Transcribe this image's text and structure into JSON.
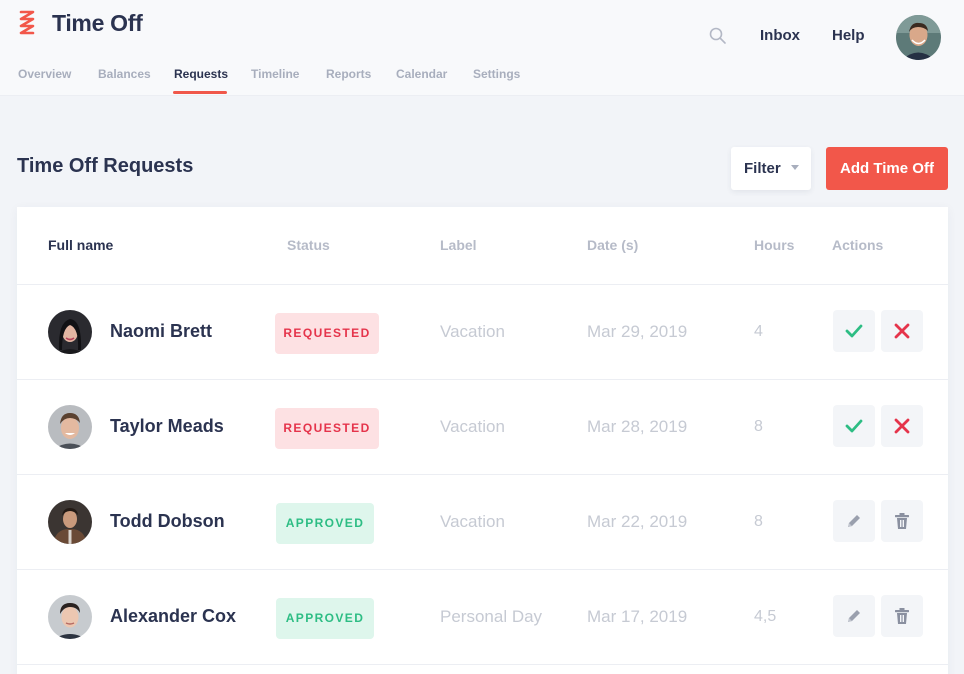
{
  "app": {
    "title": "Time Off"
  },
  "header": {
    "inbox_label": "Inbox",
    "help_label": "Help",
    "search_icon": "search-icon"
  },
  "tabs": [
    {
      "label": "Overview",
      "active": false
    },
    {
      "label": "Balances",
      "active": false
    },
    {
      "label": "Requests",
      "active": true
    },
    {
      "label": "Timeline",
      "active": false
    },
    {
      "label": "Reports",
      "active": false
    },
    {
      "label": "Calendar",
      "active": false
    },
    {
      "label": "Settings",
      "active": false
    }
  ],
  "page": {
    "title": "Time Off Requests"
  },
  "toolbar": {
    "filter_label": "Filter",
    "add_label": "Add Time Off"
  },
  "table": {
    "columns": [
      "Full name",
      "Status",
      "Label",
      "Date (s)",
      "Hours",
      "Actions"
    ],
    "rows": [
      {
        "name": "Naomi Brett",
        "status": "REQUESTED",
        "label": "Vacation",
        "date": "Mar 29, 2019",
        "hours": "4"
      },
      {
        "name": "Taylor Meads",
        "status": "REQUESTED",
        "label": "Vacation",
        "date": "Mar 28, 2019",
        "hours": "8"
      },
      {
        "name": "Todd Dobson",
        "status": "APPROVED",
        "label": "Vacation",
        "date": "Mar 22, 2019",
        "hours": "8"
      },
      {
        "name": "Alexander Cox",
        "status": "APPROVED",
        "label": "Personal Day",
        "date": "Mar 17, 2019",
        "hours": "4,5"
      }
    ]
  },
  "colors": {
    "accent": "#f2574a",
    "text_dark": "#2b3350",
    "requested_bg": "#fde1e3",
    "requested_text": "#e5344b",
    "approved_bg": "#def6ec",
    "approved_text": "#2dbd84",
    "approve_icon": "#2dbd84",
    "reject_icon": "#e5344b"
  }
}
